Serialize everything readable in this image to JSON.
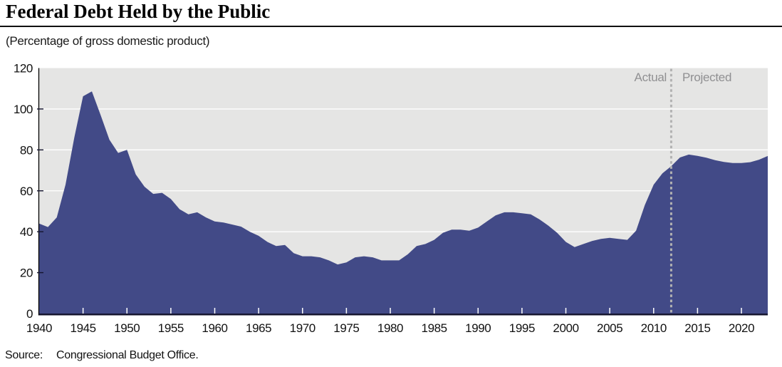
{
  "header": {
    "title": "Federal Debt Held by the Public",
    "subtitle": "(Percentage of gross domestic product)"
  },
  "footer": {
    "source_label": "Source:",
    "source_text": "Congressional Budget Office."
  },
  "chart_data": {
    "type": "area",
    "title": "Federal Debt Held by the Public",
    "subtitle": "(Percentage of gross domestic product)",
    "xlabel": "",
    "ylabel": "Percentage of gross domestic product",
    "xlim": [
      1940,
      2023
    ],
    "ylim": [
      0,
      120
    ],
    "yticks": [
      0,
      20,
      40,
      60,
      80,
      100,
      120
    ],
    "xticks": [
      1940,
      1945,
      1950,
      1955,
      1960,
      1965,
      1970,
      1975,
      1980,
      1985,
      1990,
      1995,
      2000,
      2005,
      2010,
      2015,
      2020
    ],
    "grid": true,
    "legend_position": "none",
    "annotations": {
      "actual": "Actual",
      "projected": "Projected"
    },
    "divider_year": 2012,
    "projection_start_year": 2013,
    "colors": {
      "area_fill": "#424a87",
      "plot_background": "#e5e5e4",
      "gridline": "#ffffff",
      "axis": "#000000",
      "baseline": "#15152f",
      "divider": "#b2b2b2",
      "annotation_text": "#909092",
      "tick_label": "#111111"
    },
    "series": [
      {
        "name": "Federal debt held by the public (% of GDP)",
        "years": [
          1940,
          1941,
          1942,
          1943,
          1944,
          1945,
          1946,
          1947,
          1948,
          1949,
          1950,
          1951,
          1952,
          1953,
          1954,
          1955,
          1956,
          1957,
          1958,
          1959,
          1960,
          1961,
          1962,
          1963,
          1964,
          1965,
          1966,
          1967,
          1968,
          1969,
          1970,
          1971,
          1972,
          1973,
          1974,
          1975,
          1976,
          1977,
          1978,
          1979,
          1980,
          1981,
          1982,
          1983,
          1984,
          1985,
          1986,
          1987,
          1988,
          1989,
          1990,
          1991,
          1992,
          1993,
          1994,
          1995,
          1996,
          1997,
          1998,
          1999,
          2000,
          2001,
          2002,
          2003,
          2004,
          2005,
          2006,
          2007,
          2008,
          2009,
          2010,
          2011,
          2012,
          2013,
          2014,
          2015,
          2016,
          2017,
          2018,
          2019,
          2020,
          2021,
          2022,
          2023
        ],
        "values": [
          44,
          42.3,
          47,
          63,
          86,
          106.2,
          108.6,
          97,
          85,
          78.5,
          80,
          68,
          62,
          58.5,
          59,
          56,
          51,
          48.5,
          49.5,
          47,
          45,
          44.5,
          43.5,
          42.5,
          40,
          38,
          35,
          33,
          33.5,
          29.5,
          28,
          28,
          27.5,
          26,
          24,
          25,
          27.5,
          28,
          27.5,
          26,
          26,
          26,
          29,
          33,
          34,
          36,
          39.5,
          41,
          41,
          40.5,
          42,
          45,
          48,
          49.5,
          49.5,
          49,
          48.5,
          46,
          43,
          39.5,
          35,
          32.5,
          34,
          35.5,
          36.5,
          37,
          36.5,
          36,
          40.5,
          53,
          63,
          68.5,
          72,
          76.3,
          77.7,
          77.1,
          76.2,
          75,
          74.1,
          73.6,
          73.6,
          74,
          75.2,
          77
        ]
      }
    ]
  }
}
